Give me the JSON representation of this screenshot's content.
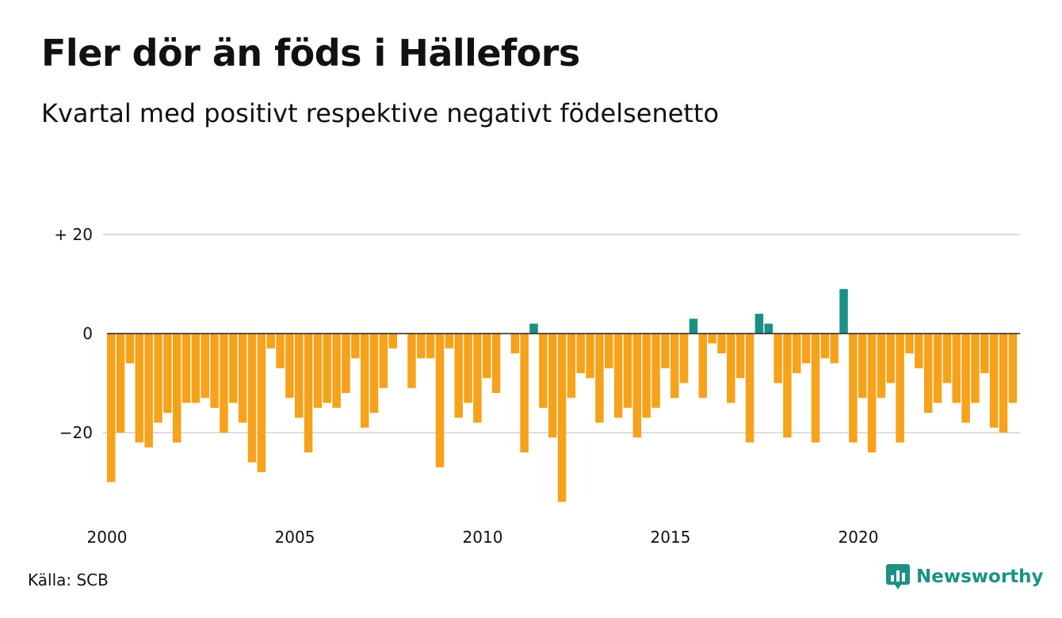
{
  "title": "Fler dör än föds i Hällefors",
  "subtitle": "Kvartal med positivt respektive negativt födelsenetto",
  "source": "Källa: SCB",
  "brand": "Newsworthy",
  "colors": {
    "negative": "#f7a21b",
    "positive": "#1a9184",
    "grid": "#dddddd",
    "zero_line": "#222222",
    "brand": "#1a9184"
  },
  "chart_data": {
    "type": "bar",
    "xlabel": "",
    "ylabel": "",
    "ylim": [
      -35,
      20
    ],
    "yticks": [
      {
        "value": 20,
        "label": "+ 20"
      },
      {
        "value": 0,
        "label": "0"
      },
      {
        "value": -20,
        "label": "−20"
      }
    ],
    "xticks": [
      "2000",
      "2005",
      "2010",
      "2015",
      "2020"
    ],
    "start": "2000 Q1",
    "grid": true,
    "legend": "none",
    "values": [
      -30,
      -20,
      -6,
      -22,
      -23,
      -18,
      -16,
      -22,
      -14,
      -14,
      -13,
      -15,
      -20,
      -14,
      -18,
      -26,
      -28,
      -3,
      -7,
      -13,
      -17,
      -24,
      -15,
      -14,
      -15,
      -12,
      -5,
      -19,
      -16,
      -11,
      -3,
      null,
      -11,
      -5,
      -5,
      -27,
      -3,
      -17,
      -14,
      -18,
      -9,
      -12,
      null,
      -4,
      -24,
      2,
      -15,
      -21,
      -34,
      -13,
      -8,
      -9,
      -18,
      -7,
      -17,
      -15,
      -21,
      -17,
      -15,
      -7,
      -13,
      -10,
      3,
      -13,
      -2,
      -4,
      -14,
      -9,
      -22,
      4,
      2,
      -10,
      -21,
      -8,
      -6,
      -22,
      -5,
      -6,
      9,
      -22,
      -13,
      -24,
      -13,
      -10,
      -22,
      -4,
      -7,
      -16,
      -14,
      -10,
      -14,
      -18,
      -14,
      -8,
      -19,
      -20,
      -14
    ]
  }
}
